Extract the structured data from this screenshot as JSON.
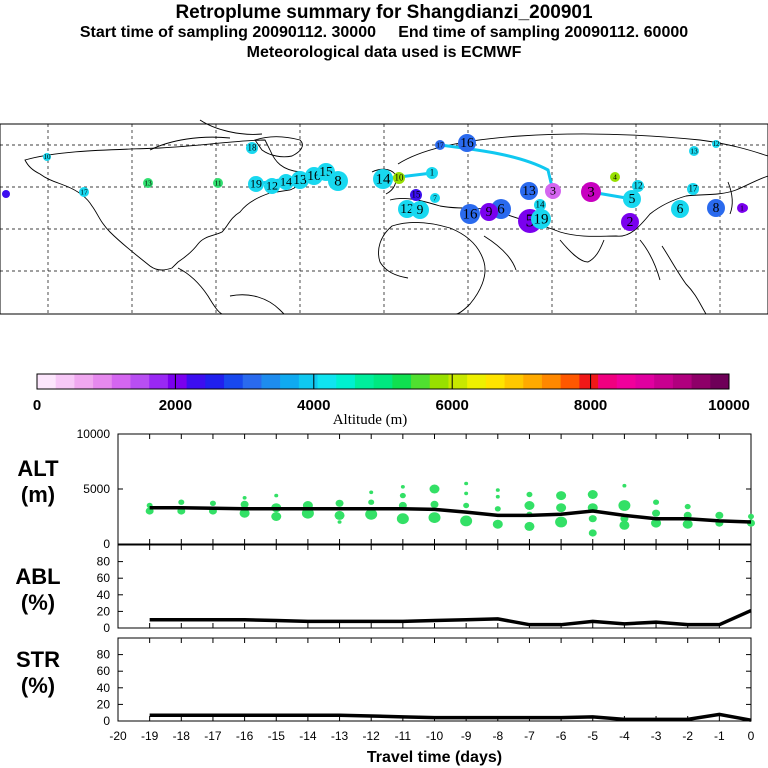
{
  "title": "Retroplume summary for Shangdianzi_200901",
  "subtitle": "Start time of sampling 20090112. 30000     End time of sampling 20090112. 60000",
  "met_line": "Meteorological data used is ECMWF",
  "colorbar": {
    "label": "Altitude (m)",
    "ticks": [
      "0",
      "2000",
      "4000",
      "6000",
      "8000",
      "10000"
    ],
    "colors": [
      "#fce6fc",
      "#f7c8f7",
      "#f0a8f0",
      "#e689ee",
      "#d466f0",
      "#b84ef2",
      "#9a28f4",
      "#7a00ee",
      "#3c0ef0",
      "#2020ee",
      "#1848ee",
      "#2a6aee",
      "#1e8cee",
      "#10aaf0",
      "#10c8f0",
      "#10e4f0",
      "#00f0d0",
      "#00ee9c",
      "#00e880",
      "#10e050",
      "#50e030",
      "#98e000",
      "#c8e800",
      "#eef000",
      "#ffe400",
      "#ffc800",
      "#ffaa00",
      "#ff8800",
      "#ff5800",
      "#f01818",
      "#f00080",
      "#f0009c",
      "#e000a0",
      "#c80090",
      "#b0007e",
      "#8e0068",
      "#6e0058"
    ]
  },
  "map": {
    "plume_labels": [
      {
        "t": "10",
        "c": "#18d8f0"
      },
      {
        "t": "17",
        "c": "#18d8f0"
      },
      {
        "t": "13",
        "c": "#30e070"
      },
      {
        "t": "11",
        "c": "#30e070"
      },
      {
        "t": "18",
        "c": "#18d8f0"
      },
      {
        "t": "19",
        "c": "#18d8f0"
      },
      {
        "t": "12",
        "c": "#18d8f0"
      },
      {
        "t": "14",
        "c": "#18d8f0"
      },
      {
        "t": "13",
        "c": "#18d8f0"
      },
      {
        "t": "16",
        "c": "#18d8f0"
      },
      {
        "t": "15",
        "c": "#18d8f0"
      },
      {
        "t": "8",
        "c": "#18d8f0"
      },
      {
        "t": "14",
        "c": "#18d8f0"
      },
      {
        "t": "10",
        "c": "#98e000"
      },
      {
        "t": "1",
        "c": "#18d8f0"
      },
      {
        "t": "16",
        "c": "#2a6aee"
      },
      {
        "t": "17",
        "c": "#2a6aee"
      },
      {
        "t": "12",
        "c": "#18d8f0"
      },
      {
        "t": "9",
        "c": "#18d8f0"
      },
      {
        "t": "15",
        "c": "#3c0ef0"
      },
      {
        "t": "7",
        "c": "#18d8f0"
      },
      {
        "t": "16",
        "c": "#2a6aee"
      },
      {
        "t": "6",
        "c": "#2a6aee"
      },
      {
        "t": "9",
        "c": "#7a00ee"
      },
      {
        "t": "5",
        "c": "#7a00ee"
      },
      {
        "t": "19",
        "c": "#18d8f0"
      },
      {
        "t": "13",
        "c": "#2a6aee"
      },
      {
        "t": "14",
        "c": "#18d8f0"
      },
      {
        "t": "3",
        "c": "#d466f0"
      },
      {
        "t": "3",
        "c": "#c800c0"
      },
      {
        "t": "4",
        "c": "#98e000"
      },
      {
        "t": "5",
        "c": "#18d8f0"
      },
      {
        "t": "2",
        "c": "#7a00ee"
      },
      {
        "t": "12",
        "c": "#18d8f0"
      },
      {
        "t": "13",
        "c": "#18d8f0"
      },
      {
        "t": "12",
        "c": "#18d8f0"
      },
      {
        "t": "17",
        "c": "#18d8f0"
      },
      {
        "t": "6",
        "c": "#18d8f0"
      },
      {
        "t": "8",
        "c": "#2a6aee"
      },
      {
        "t": "1",
        "c": "#7a00ee"
      }
    ]
  },
  "chart_data": [
    {
      "type": "scatter",
      "panel": "ALT",
      "ylabel": "ALT\n(m)",
      "ylabel_lines": [
        "ALT",
        "(m)"
      ],
      "ylim": [
        0,
        10000
      ],
      "yticks": [
        "0",
        "5000",
        "10000"
      ],
      "x_range": [
        -20,
        0
      ],
      "mean_line": {
        "x": [
          -19,
          -18,
          -17,
          -16,
          -15,
          -14,
          -13,
          -12,
          -11,
          -10,
          -9,
          -8,
          -7,
          -6,
          -5,
          -4,
          -3,
          -2,
          -1,
          0
        ],
        "y": [
          3300,
          3300,
          3250,
          3200,
          3200,
          3200,
          3200,
          3200,
          3200,
          3150,
          2900,
          2600,
          2600,
          2700,
          3000,
          2600,
          2300,
          2300,
          2100,
          2000
        ]
      },
      "points": [
        {
          "x": -19,
          "y": 3000,
          "s": 4
        },
        {
          "x": -19,
          "y": 3500,
          "s": 3
        },
        {
          "x": -18,
          "y": 3000,
          "s": 4
        },
        {
          "x": -18,
          "y": 3800,
          "s": 3
        },
        {
          "x": -17,
          "y": 3000,
          "s": 4
        },
        {
          "x": -17,
          "y": 3700,
          "s": 3
        },
        {
          "x": -16,
          "y": 2800,
          "s": 5
        },
        {
          "x": -16,
          "y": 3600,
          "s": 4
        },
        {
          "x": -16,
          "y": 4200,
          "s": 2
        },
        {
          "x": -15,
          "y": 2500,
          "s": 5
        },
        {
          "x": -15,
          "y": 3300,
          "s": 5
        },
        {
          "x": -15,
          "y": 4400,
          "s": 2
        },
        {
          "x": -14,
          "y": 2800,
          "s": 6
        },
        {
          "x": -14,
          "y": 3500,
          "s": 5
        },
        {
          "x": -13,
          "y": 2600,
          "s": 5
        },
        {
          "x": -13,
          "y": 3700,
          "s": 4
        },
        {
          "x": -13,
          "y": 2000,
          "s": 2
        },
        {
          "x": -12,
          "y": 2700,
          "s": 6
        },
        {
          "x": -12,
          "y": 3800,
          "s": 3
        },
        {
          "x": -12,
          "y": 4700,
          "s": 2
        },
        {
          "x": -11,
          "y": 2300,
          "s": 6
        },
        {
          "x": -11,
          "y": 3500,
          "s": 4
        },
        {
          "x": -11,
          "y": 4400,
          "s": 3
        },
        {
          "x": -11,
          "y": 5200,
          "s": 2
        },
        {
          "x": -10,
          "y": 2400,
          "s": 6
        },
        {
          "x": -10,
          "y": 3600,
          "s": 4
        },
        {
          "x": -10,
          "y": 5000,
          "s": 5
        },
        {
          "x": -9,
          "y": 2100,
          "s": 6
        },
        {
          "x": -9,
          "y": 3500,
          "s": 3
        },
        {
          "x": -9,
          "y": 4600,
          "s": 2
        },
        {
          "x": -9,
          "y": 5500,
          "s": 2
        },
        {
          "x": -8,
          "y": 1800,
          "s": 5
        },
        {
          "x": -8,
          "y": 3200,
          "s": 3
        },
        {
          "x": -8,
          "y": 4300,
          "s": 2
        },
        {
          "x": -8,
          "y": 4900,
          "s": 2
        },
        {
          "x": -7,
          "y": 1600,
          "s": 5
        },
        {
          "x": -7,
          "y": 2700,
          "s": 3
        },
        {
          "x": -7,
          "y": 3500,
          "s": 5
        },
        {
          "x": -7,
          "y": 4500,
          "s": 3
        },
        {
          "x": -6,
          "y": 2000,
          "s": 6
        },
        {
          "x": -6,
          "y": 3300,
          "s": 5
        },
        {
          "x": -6,
          "y": 4400,
          "s": 5
        },
        {
          "x": -5,
          "y": 1000,
          "s": 4
        },
        {
          "x": -5,
          "y": 2300,
          "s": 4
        },
        {
          "x": -5,
          "y": 3300,
          "s": 5
        },
        {
          "x": -5,
          "y": 4500,
          "s": 5
        },
        {
          "x": -4,
          "y": 1700,
          "s": 5
        },
        {
          "x": -4,
          "y": 2300,
          "s": 4
        },
        {
          "x": -4,
          "y": 3500,
          "s": 6
        },
        {
          "x": -4,
          "y": 5300,
          "s": 2
        },
        {
          "x": -3,
          "y": 1900,
          "s": 5
        },
        {
          "x": -3,
          "y": 2800,
          "s": 4
        },
        {
          "x": -3,
          "y": 3800,
          "s": 3
        },
        {
          "x": -2,
          "y": 1800,
          "s": 5
        },
        {
          "x": -2,
          "y": 2600,
          "s": 4
        },
        {
          "x": -2,
          "y": 3400,
          "s": 3
        },
        {
          "x": -1,
          "y": 1900,
          "s": 4
        },
        {
          "x": -1,
          "y": 2600,
          "s": 4
        },
        {
          "x": 0,
          "y": 1900,
          "s": 4
        },
        {
          "x": 0,
          "y": 2500,
          "s": 3
        }
      ]
    },
    {
      "type": "line",
      "panel": "ABL",
      "ylabel": "ABL\n(%)",
      "ylabel_lines": [
        "ABL",
        "(%)"
      ],
      "ylim": [
        0,
        100
      ],
      "yticks": [
        "0",
        "20",
        "40",
        "60",
        "80"
      ],
      "x_range": [
        -20,
        0
      ],
      "x": [
        -19,
        -18,
        -17,
        -16,
        -15,
        -14,
        -13,
        -12,
        -11,
        -10,
        -9,
        -8,
        -7,
        -6,
        -5,
        -4,
        -3,
        -2,
        -1,
        0
      ],
      "y": [
        10,
        10,
        10,
        10,
        9,
        8,
        8,
        8,
        8,
        9,
        10,
        11,
        4,
        4,
        8,
        5,
        7,
        4,
        4,
        21
      ]
    },
    {
      "type": "line",
      "panel": "STR",
      "ylabel": "STR\n(%)",
      "ylabel_lines": [
        "STR",
        "(%)"
      ],
      "ylim": [
        0,
        100
      ],
      "yticks": [
        "0",
        "20",
        "40",
        "60",
        "80"
      ],
      "x_range": [
        -20,
        0
      ],
      "x": [
        -19,
        -18,
        -17,
        -16,
        -15,
        -14,
        -13,
        -12,
        -11,
        -10,
        -9,
        -8,
        -7,
        -6,
        -5,
        -4,
        -3,
        -2,
        -1,
        0
      ],
      "y": [
        7,
        7,
        7,
        7,
        7,
        7,
        7,
        6,
        5,
        4,
        4,
        4,
        4,
        4,
        5,
        2,
        2,
        2,
        8,
        1
      ],
      "xticks": [
        "-20",
        "-19",
        "-18",
        "-17",
        "-16",
        "-15",
        "-14",
        "-13",
        "-12",
        "-11",
        "-10",
        "-9",
        "-8",
        "-7",
        "-6",
        "-5",
        "-4",
        "-3",
        "-2",
        "-1",
        "0"
      ],
      "xlabel": "Travel time (days)"
    }
  ]
}
